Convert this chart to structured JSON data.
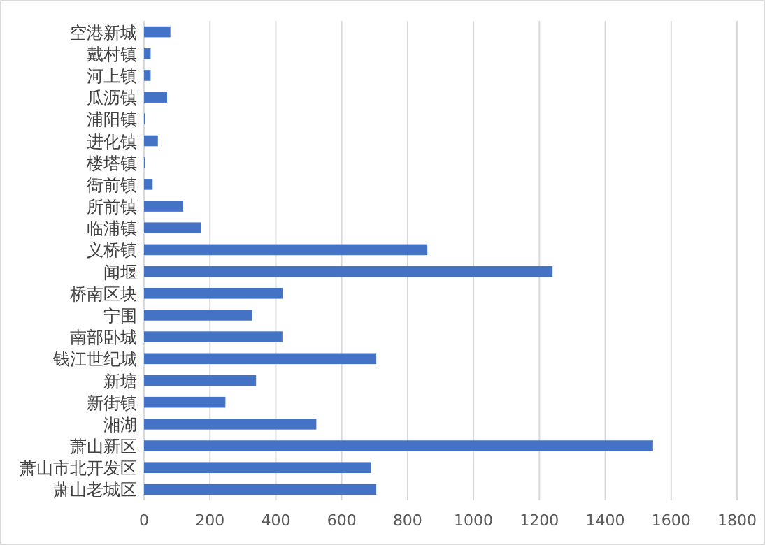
{
  "chart_data": {
    "type": "bar",
    "orientation": "horizontal",
    "categories": [
      "空港新城",
      "戴村镇",
      "河上镇",
      "瓜沥镇",
      "浦阳镇",
      "进化镇",
      "楼塔镇",
      "衙前镇",
      "所前镇",
      "临浦镇",
      "义桥镇",
      "闻堰",
      "桥南区块",
      "宁围",
      "南部卧城",
      "钱江世纪城",
      "新塘",
      "新街镇",
      "湘湖",
      "萧山新区",
      "萧山市北开发区",
      "萧山老城区"
    ],
    "values": [
      80,
      20,
      20,
      70,
      3,
      42,
      3,
      26,
      119,
      174,
      860,
      1240,
      421,
      328,
      420,
      705,
      340,
      247,
      523,
      1545,
      689,
      705
    ],
    "color": "#4472c4",
    "xlim": [
      0,
      1800
    ],
    "xticks": [
      0,
      200,
      400,
      600,
      800,
      1000,
      1200,
      1400,
      1600,
      1800
    ],
    "grid": "x"
  }
}
